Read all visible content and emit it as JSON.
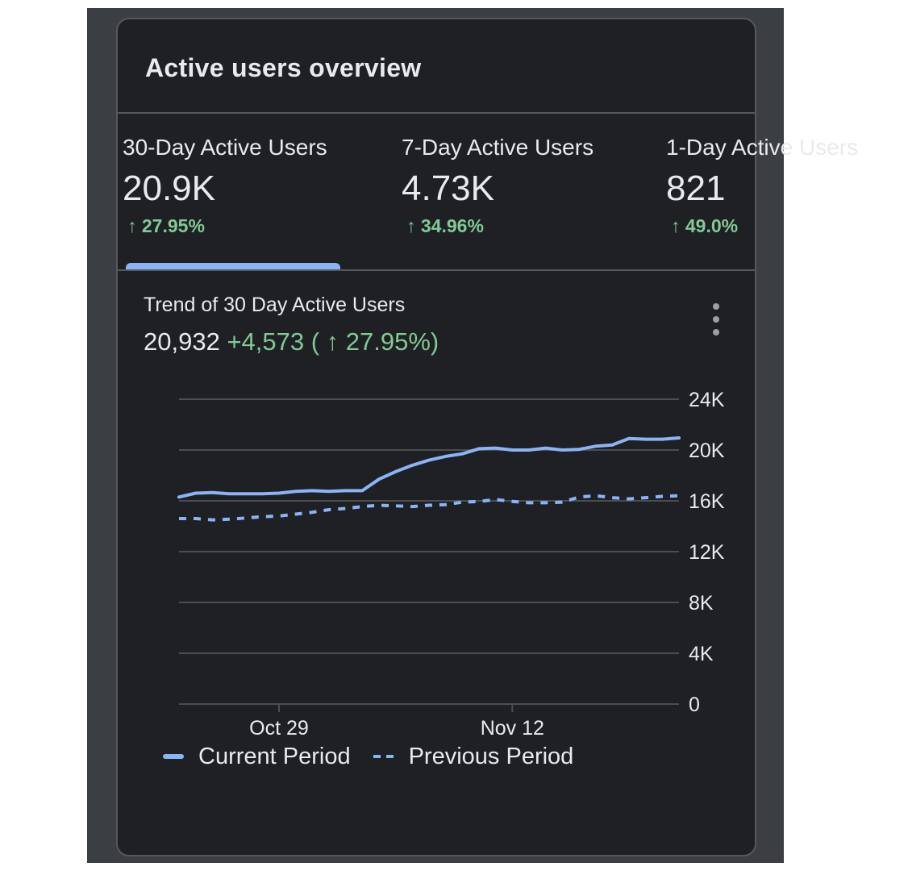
{
  "card": {
    "title": "Active users overview"
  },
  "metrics": [
    {
      "label": "30-Day Active Users",
      "value": "20.9K",
      "delta": "↑ 27.95%"
    },
    {
      "label": "7-Day Active Users",
      "value": "4.73K",
      "delta": "↑ 34.96%"
    },
    {
      "label": "1-Day Active Users",
      "value": "821",
      "delta": "↑ 49.0%"
    }
  ],
  "trend": {
    "title": "Trend of 30 Day Active Users",
    "value": "20,932",
    "delta": "+4,573 ( ↑ 27.95%)"
  },
  "legend": {
    "current": "Current Period",
    "previous": "Previous Period"
  },
  "colors": {
    "accent": "#8ab4f8",
    "positive": "#81c995"
  },
  "icons": {
    "menu": "more-vert-icon"
  },
  "chart_data": {
    "type": "line",
    "title": "Trend of 30 Day Active Users",
    "xlabel": "",
    "ylabel": "",
    "ylim": [
      0,
      24000
    ],
    "yticks": [
      0,
      4000,
      8000,
      12000,
      16000,
      20000,
      24000
    ],
    "ytick_labels": [
      "0",
      "4K",
      "8K",
      "12K",
      "16K",
      "20K",
      "24K"
    ],
    "xtick_labels": [
      {
        "label": "Oct 29",
        "index": 6
      },
      {
        "label": "Nov 12",
        "index": 20
      }
    ],
    "grid": true,
    "legend": "bottom",
    "series": [
      {
        "name": "Current Period",
        "style": "solid",
        "values": [
          16300,
          16600,
          16650,
          16550,
          16550,
          16550,
          16600,
          16750,
          16800,
          16750,
          16800,
          16800,
          17700,
          18300,
          18800,
          19200,
          19500,
          19700,
          20100,
          20150,
          20000,
          20000,
          20150,
          20000,
          20050,
          20300,
          20400,
          20900,
          20850,
          20850,
          20950
        ]
      },
      {
        "name": "Previous Period",
        "style": "dashed",
        "values": [
          14600,
          14600,
          14500,
          14550,
          14650,
          14750,
          14800,
          14950,
          15100,
          15300,
          15400,
          15550,
          15650,
          15600,
          15550,
          15650,
          15700,
          15900,
          15950,
          16100,
          15950,
          15850,
          15850,
          15900,
          16300,
          16400,
          16250,
          16150,
          16250,
          16350,
          16400
        ]
      }
    ]
  }
}
